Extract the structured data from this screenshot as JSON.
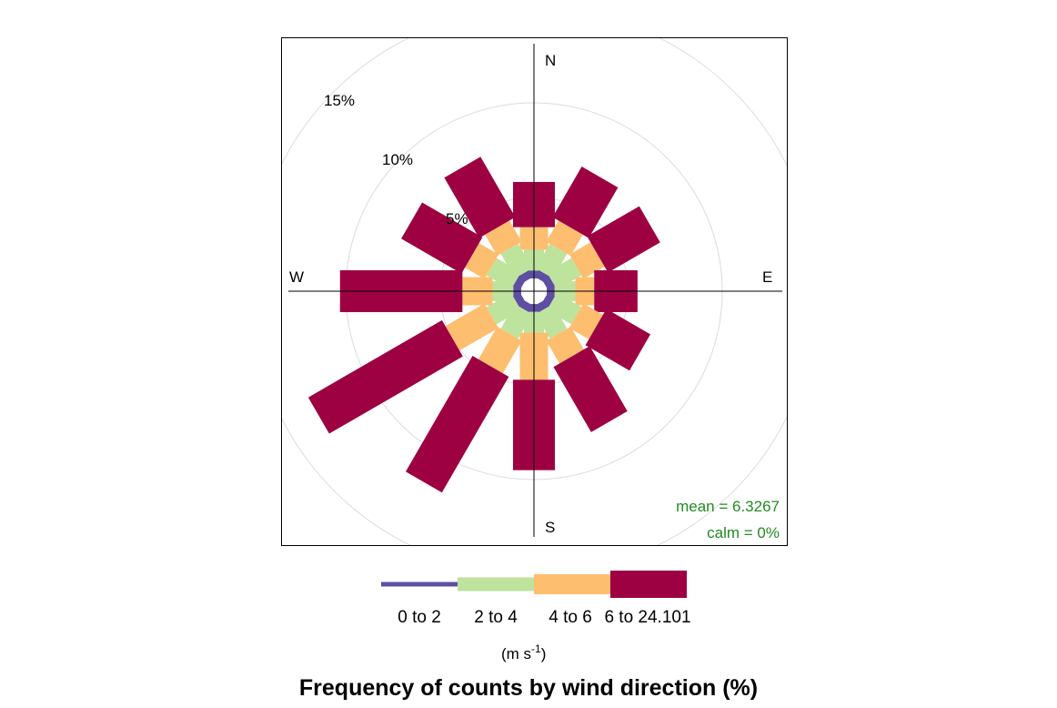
{
  "chart_data": {
    "type": "windrose",
    "title": "Frequency of counts by wind direction (%)",
    "directions": [
      0,
      30,
      60,
      90,
      120,
      150,
      180,
      210,
      240,
      270,
      300,
      330
    ],
    "compass_labels": {
      "N": "N",
      "E": "E",
      "S": "S",
      "W": "W"
    },
    "bins": [
      {
        "name": "0 to 2",
        "color": "#5E4FA2"
      },
      {
        "name": "2 to 4",
        "color": "#BDE39D"
      },
      {
        "name": "4 to 6",
        "color": "#FDBE6F"
      },
      {
        "name": "6 to 24.101",
        "color": "#9E0142"
      }
    ],
    "cumulative_freq": [
      [
        1.1,
        2.2,
        3.4,
        5.8
      ],
      [
        1.1,
        2.6,
        3.9,
        7.0
      ],
      [
        1.1,
        2.6,
        3.9,
        7.1
      ],
      [
        1.1,
        2.2,
        3.2,
        5.5
      ],
      [
        1.1,
        2.6,
        3.8,
        6.5
      ],
      [
        1.1,
        2.6,
        4.0,
        8.0
      ],
      [
        1.1,
        2.2,
        4.7,
        9.5
      ],
      [
        1.1,
        2.6,
        4.6,
        11.7
      ],
      [
        1.1,
        2.6,
        5.0,
        13.2
      ],
      [
        1.1,
        2.2,
        3.8,
        10.3
      ],
      [
        1.1,
        2.6,
        3.8,
        7.5
      ],
      [
        1.1,
        2.6,
        3.9,
        7.6
      ]
    ],
    "radial_ticks": [
      5,
      10,
      15
    ],
    "radial_tick_labels": [
      "5%",
      "10%",
      "15%"
    ],
    "radial_max": 17.0,
    "legend_labels": [
      "0 to 2",
      "2 to 4",
      "4 to 6",
      "6 to 24.101"
    ],
    "units_label": "(m s",
    "units_exp": "-1",
    "units_close": ")",
    "annotations": {
      "mean": "mean = 6.3267",
      "calm": "calm = 0%"
    },
    "annotation_color": "#228B22"
  }
}
